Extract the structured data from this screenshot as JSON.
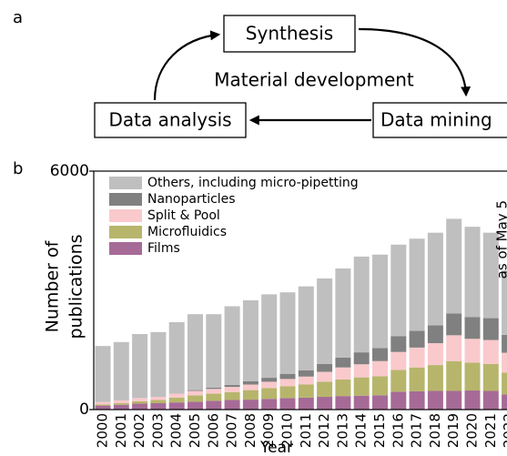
{
  "panel_a": {
    "label": "a",
    "nodes": [
      {
        "label": "Synthesis"
      },
      {
        "label": "Data mining"
      },
      {
        "label": "Data analysis"
      }
    ],
    "center_label": "Material development"
  },
  "chart_data": {
    "type": "stacked_bar",
    "panel_label": "b",
    "xlabel": "Year",
    "ylabel": [
      "Number of",
      "publications"
    ],
    "annotation": "as of May 5",
    "categories": [
      "2000",
      "2001",
      "2002",
      "2003",
      "2004",
      "2005",
      "2006",
      "2007",
      "2008",
      "2009",
      "2010",
      "2011",
      "2012",
      "2013",
      "2014",
      "2015",
      "2016",
      "2017",
      "2018",
      "2019",
      "2020",
      "2021",
      "2022"
    ],
    "series": [
      {
        "name": "Films",
        "color": "#a66a97",
        "values": [
          100,
          120,
          150,
          160,
          180,
          200,
          220,
          240,
          250,
          270,
          290,
          300,
          320,
          340,
          350,
          360,
          450,
          460,
          470,
          470,
          480,
          470,
          380
        ]
      },
      {
        "name": "Microfluidics",
        "color": "#b7b56b",
        "values": [
          30,
          40,
          60,
          80,
          120,
          160,
          180,
          200,
          240,
          270,
          300,
          330,
          380,
          420,
          460,
          480,
          550,
          600,
          650,
          750,
          700,
          680,
          550
        ]
      },
      {
        "name": "Split & Pool",
        "color": "#f9c9cc",
        "values": [
          60,
          70,
          80,
          80,
          100,
          110,
          120,
          130,
          140,
          160,
          180,
          200,
          250,
          300,
          330,
          380,
          450,
          500,
          550,
          650,
          600,
          600,
          500
        ]
      },
      {
        "name": "Nanoparticles",
        "color": "#808080",
        "values": [
          0,
          0,
          0,
          0,
          0,
          20,
          30,
          50,
          80,
          100,
          130,
          160,
          200,
          250,
          300,
          330,
          400,
          420,
          450,
          550,
          550,
          550,
          450
        ]
      },
      {
        "name": "Others, including micro-pipetting",
        "color": "#bfbfbf",
        "values": [
          1410,
          1470,
          1610,
          1630,
          1800,
          1910,
          1850,
          1980,
          2040,
          2100,
          2050,
          2110,
          2150,
          2240,
          2410,
          2350,
          2300,
          2320,
          2330,
          2380,
          2270,
          2150,
          1620
        ]
      }
    ],
    "ylim": [
      0,
      6000
    ],
    "yticks": [
      0,
      6000
    ],
    "legend": "upper left"
  }
}
